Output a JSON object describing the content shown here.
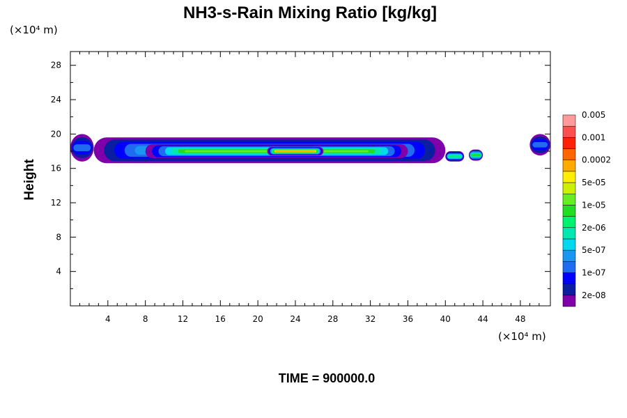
{
  "chart_data": {
    "type": "heatmap",
    "title": "NH3-s-Rain Mixing Ratio [kg/kg]",
    "ylabel": "Height",
    "x_unit": "(×10⁴ m)",
    "y_unit": "(×10⁴ m)",
    "footer": "TIME = 900000.0",
    "xlim": [
      0,
      51.2
    ],
    "ylim": [
      0,
      29.6
    ],
    "x_ticks": [
      4,
      8,
      12,
      16,
      20,
      24,
      28,
      32,
      36,
      40,
      44,
      48
    ],
    "y_ticks": [
      4,
      8,
      12,
      16,
      20,
      24,
      28
    ],
    "colorbar": {
      "colors": [
        "#7f00aa",
        "#0a1fa0",
        "#0000ff",
        "#1f6cf0",
        "#1a96f0",
        "#00d8f0",
        "#00e8b0",
        "#00f070",
        "#22dd22",
        "#66ee22",
        "#ccf000",
        "#ffee00",
        "#ffaa00",
        "#ff6600",
        "#ff2200",
        "#ff5050",
        "#ff9a9a"
      ],
      "labels": [
        "2e-08",
        "1e-07",
        "5e-07",
        "2e-06",
        "1e-05",
        "5e-05",
        "0.0002",
        "0.001",
        "0.005"
      ]
    },
    "field": {
      "description_levels": "layer between ~16.5 and ~20 (x10^4 m) spanning x 0–51.2",
      "bands": [
        {
          "x": [
            0,
            2.5
          ],
          "y": [
            16.8,
            20.0
          ],
          "level": 3
        },
        {
          "x": [
            2.5,
            40
          ],
          "y": [
            16.6,
            19.6
          ],
          "level": 5
        },
        {
          "x": [
            8,
            36
          ],
          "y": [
            17.2,
            18.8
          ],
          "level": 9
        },
        {
          "x": [
            21,
            27
          ],
          "y": [
            17.5,
            18.5
          ],
          "level": 12
        },
        {
          "x": [
            40,
            42
          ],
          "y": [
            16.8,
            18.0
          ],
          "level": 7
        },
        {
          "x": [
            42.5,
            44
          ],
          "y": [
            16.9,
            18.2
          ],
          "level": 8
        },
        {
          "x": [
            49,
            51.2
          ],
          "y": [
            17.5,
            20.0
          ],
          "level": 3
        }
      ]
    }
  }
}
